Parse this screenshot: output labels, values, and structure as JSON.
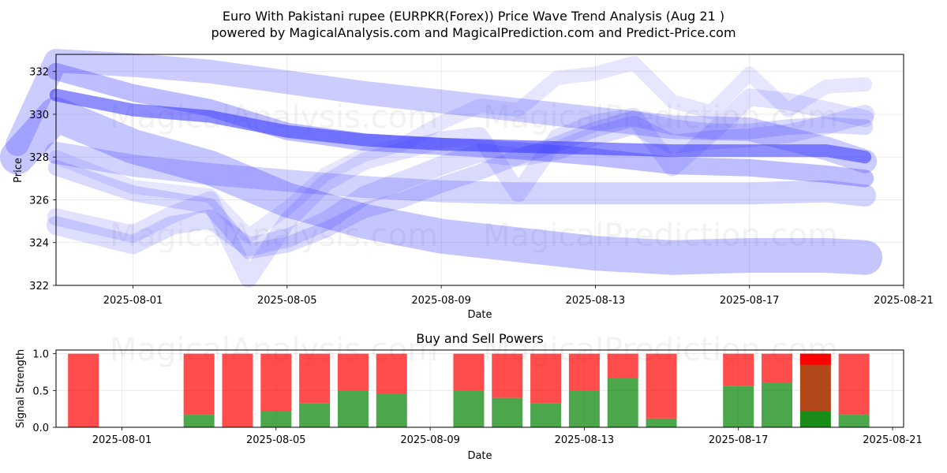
{
  "title_line1": "Euro With Pakistani rupee (EURPKR(Forex)) Price Wave Trend Analysis (Aug 21 )",
  "title_line2": "powered by MagicalAnalysis.com and MagicalPrediction.com and Predict-Price.com",
  "watermarks": [
    "MagicalAnalysis.com",
    "MagicalPrediction.com"
  ],
  "colors": {
    "wave": "#3333ff",
    "buy": "#008000",
    "sell": "#ff0000",
    "dark_sell": "#aa3300"
  },
  "chart_data": [
    {
      "type": "line",
      "title": "",
      "xlabel": "Date",
      "ylabel": "Price",
      "ylim": [
        322,
        332.8
      ],
      "x_ticks": [
        "2025-08-01",
        "2025-08-05",
        "2025-08-09",
        "2025-08-13",
        "2025-08-17",
        "2025-08-21"
      ],
      "y_ticks": [
        322,
        324,
        326,
        328,
        330,
        332
      ],
      "grid": true,
      "series": [
        {
          "x": [
            "2025-07-30",
            "2025-08-01",
            "2025-08-03",
            "2025-08-05",
            "2025-08-07",
            "2025-08-09",
            "2025-08-11",
            "2025-08-13",
            "2025-08-15",
            "2025-08-17",
            "2025-08-19",
            "2025-08-20"
          ],
          "values": [
            330.9,
            330.2,
            329.9,
            329.2,
            328.8,
            328.6,
            328.5,
            328.4,
            328.3,
            328.3,
            328.3,
            328.0
          ]
        },
        {
          "x": [
            "2025-07-30",
            "2025-08-01",
            "2025-08-03",
            "2025-08-05",
            "2025-08-07",
            "2025-08-09",
            "2025-08-11",
            "2025-08-13",
            "2025-08-15",
            "2025-08-17",
            "2025-08-19",
            "2025-08-20"
          ],
          "values": [
            332.0,
            331.0,
            330.3,
            329.2,
            328.7,
            328.5,
            328.3,
            328.0,
            327.6,
            327.5,
            327.2,
            327.0
          ]
        },
        {
          "x": [
            "2025-07-29",
            "2025-07-30",
            "2025-08-01",
            "2025-08-03",
            "2025-08-05",
            "2025-08-07",
            "2025-08-09",
            "2025-08-11",
            "2025-08-13",
            "2025-08-15",
            "2025-08-17",
            "2025-08-19",
            "2025-08-20"
          ],
          "values": [
            328.6,
            332.5,
            332.3,
            332.0,
            331.5,
            331.0,
            330.6,
            330.2,
            329.8,
            329.4,
            329.3,
            328.4,
            327.8
          ]
        },
        {
          "x": [
            "2025-07-29",
            "2025-07-30",
            "2025-08-01",
            "2025-08-03",
            "2025-08-05",
            "2025-08-07",
            "2025-08-09",
            "2025-08-11",
            "2025-08-13",
            "2025-08-15",
            "2025-08-17",
            "2025-08-19",
            "2025-08-20"
          ],
          "values": [
            328.0,
            330.0,
            328.5,
            327.5,
            326.0,
            325.0,
            324.3,
            323.9,
            323.5,
            323.3,
            323.4,
            323.4,
            323.3
          ]
        },
        {
          "x": [
            "2025-07-30",
            "2025-08-01",
            "2025-08-03",
            "2025-08-05",
            "2025-08-07",
            "2025-08-09",
            "2025-08-11",
            "2025-08-13",
            "2025-08-15",
            "2025-08-17",
            "2025-08-19",
            "2025-08-20"
          ],
          "values": [
            328.2,
            327.6,
            327.2,
            326.9,
            326.6,
            326.4,
            326.3,
            326.3,
            326.3,
            326.3,
            326.4,
            326.2
          ]
        },
        {
          "x": [
            "2025-07-30",
            "2025-08-01",
            "2025-08-02",
            "2025-08-03",
            "2025-08-04",
            "2025-08-05",
            "2025-08-06",
            "2025-08-07",
            "2025-08-08",
            "2025-08-09",
            "2025-08-10",
            "2025-08-11",
            "2025-08-12",
            "2025-08-13",
            "2025-08-14",
            "2025-08-15",
            "2025-08-16",
            "2025-08-17",
            "2025-08-18",
            "2025-08-19",
            "2025-08-20"
          ],
          "values": [
            327.5,
            326.3,
            326.0,
            325.7,
            323.6,
            323.9,
            324.6,
            325.5,
            326.0,
            326.7,
            327.3,
            328.0,
            328.6,
            329.3,
            329.8,
            329.4,
            329.2,
            329.2,
            329.4,
            329.5,
            329.4
          ]
        },
        {
          "x": [
            "2025-07-30",
            "2025-08-01",
            "2025-08-02",
            "2025-08-03",
            "2025-08-04",
            "2025-08-05",
            "2025-08-06",
            "2025-08-07",
            "2025-08-08",
            "2025-08-09",
            "2025-08-10",
            "2025-08-11",
            "2025-08-12",
            "2025-08-13",
            "2025-08-14",
            "2025-08-15",
            "2025-08-16",
            "2025-08-17",
            "2025-08-18",
            "2025-08-19",
            "2025-08-20"
          ],
          "values": [
            324.8,
            323.9,
            324.8,
            325.1,
            323.8,
            324.2,
            325.0,
            326.2,
            326.9,
            327.6,
            328.2,
            328.0,
            328.3,
            329.0,
            329.5,
            328.6,
            328.8,
            328.9,
            329.1,
            329.5,
            330.0
          ]
        },
        {
          "x": [
            "2025-07-30",
            "2025-08-01",
            "2025-08-02",
            "2025-08-03",
            "2025-08-04",
            "2025-08-05",
            "2025-08-06",
            "2025-08-07",
            "2025-08-08",
            "2025-08-09",
            "2025-08-10",
            "2025-08-11",
            "2025-08-12",
            "2025-08-13",
            "2025-08-14",
            "2025-08-15",
            "2025-08-16",
            "2025-08-17",
            "2025-08-18",
            "2025-08-19",
            "2025-08-20"
          ],
          "values": [
            325.2,
            324.4,
            325.3,
            326.0,
            322.3,
            325.0,
            326.8,
            327.8,
            328.3,
            328.8,
            329.0,
            326.3,
            328.9,
            329.6,
            329.9,
            327.5,
            329.1,
            330.8,
            330.6,
            330.2,
            329.8
          ]
        },
        {
          "x": [
            "2025-07-30",
            "2025-08-01",
            "2025-08-02",
            "2025-08-03",
            "2025-08-04",
            "2025-08-05",
            "2025-08-06",
            "2025-08-07",
            "2025-08-08",
            "2025-08-09",
            "2025-08-10",
            "2025-08-11",
            "2025-08-12",
            "2025-08-13",
            "2025-08-14",
            "2025-08-15",
            "2025-08-16",
            "2025-08-17",
            "2025-08-18",
            "2025-08-19",
            "2025-08-20"
          ],
          "values": [
            328.0,
            326.6,
            326.4,
            326.2,
            324.3,
            325.6,
            327.2,
            328.1,
            328.6,
            329.6,
            330.4,
            330.2,
            331.7,
            331.9,
            332.4,
            330.6,
            330.1,
            331.9,
            330.2,
            331.3,
            331.4
          ]
        }
      ]
    },
    {
      "type": "bar",
      "title": "Buy and Sell Powers",
      "xlabel": "Date",
      "ylabel": "Signal Strength",
      "ylim": [
        0,
        1.05
      ],
      "x_ticks": [
        "2025-08-01",
        "2025-08-05",
        "2025-08-09",
        "2025-08-13",
        "2025-08-17",
        "2025-08-21"
      ],
      "y_ticks": [
        "0.0",
        "0.5",
        "1.0"
      ],
      "grid": true,
      "series": [
        {
          "name": "buy",
          "x": [
            "2025-07-31",
            "2025-08-03",
            "2025-08-04",
            "2025-08-05",
            "2025-08-06",
            "2025-08-07",
            "2025-08-08",
            "2025-08-10",
            "2025-08-11",
            "2025-08-12",
            "2025-08-13",
            "2025-08-14",
            "2025-08-15",
            "2025-08-17",
            "2025-08-18",
            "2025-08-19",
            "2025-08-20"
          ],
          "values": [
            0.0,
            0.17,
            0.0,
            0.22,
            0.33,
            0.5,
            0.45,
            0.5,
            0.4,
            0.33,
            0.5,
            0.67,
            0.12,
            0.56,
            0.61,
            0.22,
            0.17
          ]
        },
        {
          "name": "sell",
          "x": [
            "2025-07-31",
            "2025-08-03",
            "2025-08-04",
            "2025-08-05",
            "2025-08-06",
            "2025-08-07",
            "2025-08-08",
            "2025-08-10",
            "2025-08-11",
            "2025-08-12",
            "2025-08-13",
            "2025-08-14",
            "2025-08-15",
            "2025-08-17",
            "2025-08-18",
            "2025-08-19",
            "2025-08-20"
          ],
          "values": [
            1.0,
            0.83,
            1.0,
            0.78,
            0.67,
            0.5,
            0.55,
            0.5,
            0.6,
            0.67,
            0.5,
            0.33,
            0.88,
            0.44,
            0.39,
            0.78,
            0.83
          ]
        }
      ]
    }
  ]
}
